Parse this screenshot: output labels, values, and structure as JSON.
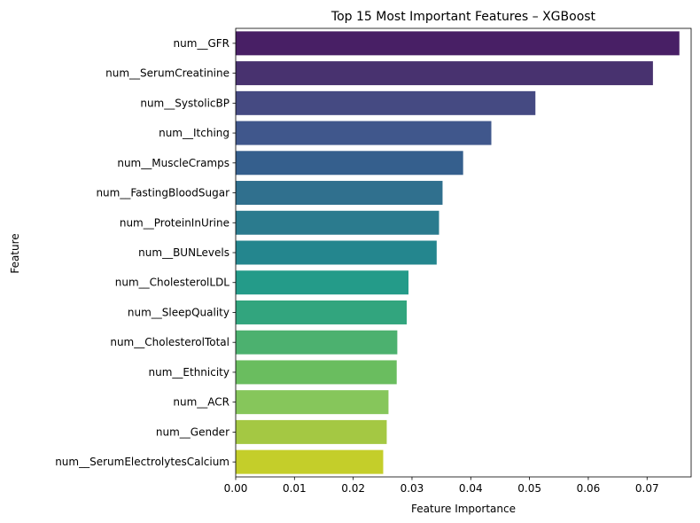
{
  "chart_data": {
    "type": "bar",
    "orientation": "horizontal",
    "title": "Top 15 Most Important Features – XGBoost",
    "xlabel": "Feature Importance",
    "ylabel": "Feature",
    "xlim": [
      0,
      0.0775
    ],
    "xticks": [
      0.0,
      0.01,
      0.02,
      0.03,
      0.04,
      0.05,
      0.06,
      0.07
    ],
    "xtick_labels": [
      "0.00",
      "0.01",
      "0.02",
      "0.03",
      "0.04",
      "0.05",
      "0.06",
      "0.07"
    ],
    "grid": false,
    "categories": [
      "num__GFR",
      "num__SerumCreatinine",
      "num__SystolicBP",
      "num__Itching",
      "num__MuscleCramps",
      "num__FastingBloodSugar",
      "num__ProteinInUrine",
      "num__BUNLevels",
      "num__CholesterolLDL",
      "num__SleepQuality",
      "num__CholesterolTotal",
      "num__Ethnicity",
      "num__ACR",
      "num__Gender",
      "num__SerumElectrolytesCalcium"
    ],
    "values": [
      0.0755,
      0.071,
      0.051,
      0.0435,
      0.0387,
      0.0352,
      0.0346,
      0.0342,
      0.0294,
      0.0291,
      0.0275,
      0.0274,
      0.026,
      0.0257,
      0.0251
    ],
    "colors": [
      "#481f65",
      "#48326f",
      "#454a82",
      "#40578c",
      "#355f8d",
      "#30708e",
      "#2b7b8e",
      "#24868e",
      "#249b89",
      "#32a57e",
      "#4cb16f",
      "#6abd5f",
      "#86c65b",
      "#a4c843",
      "#c4ce2a"
    ]
  }
}
